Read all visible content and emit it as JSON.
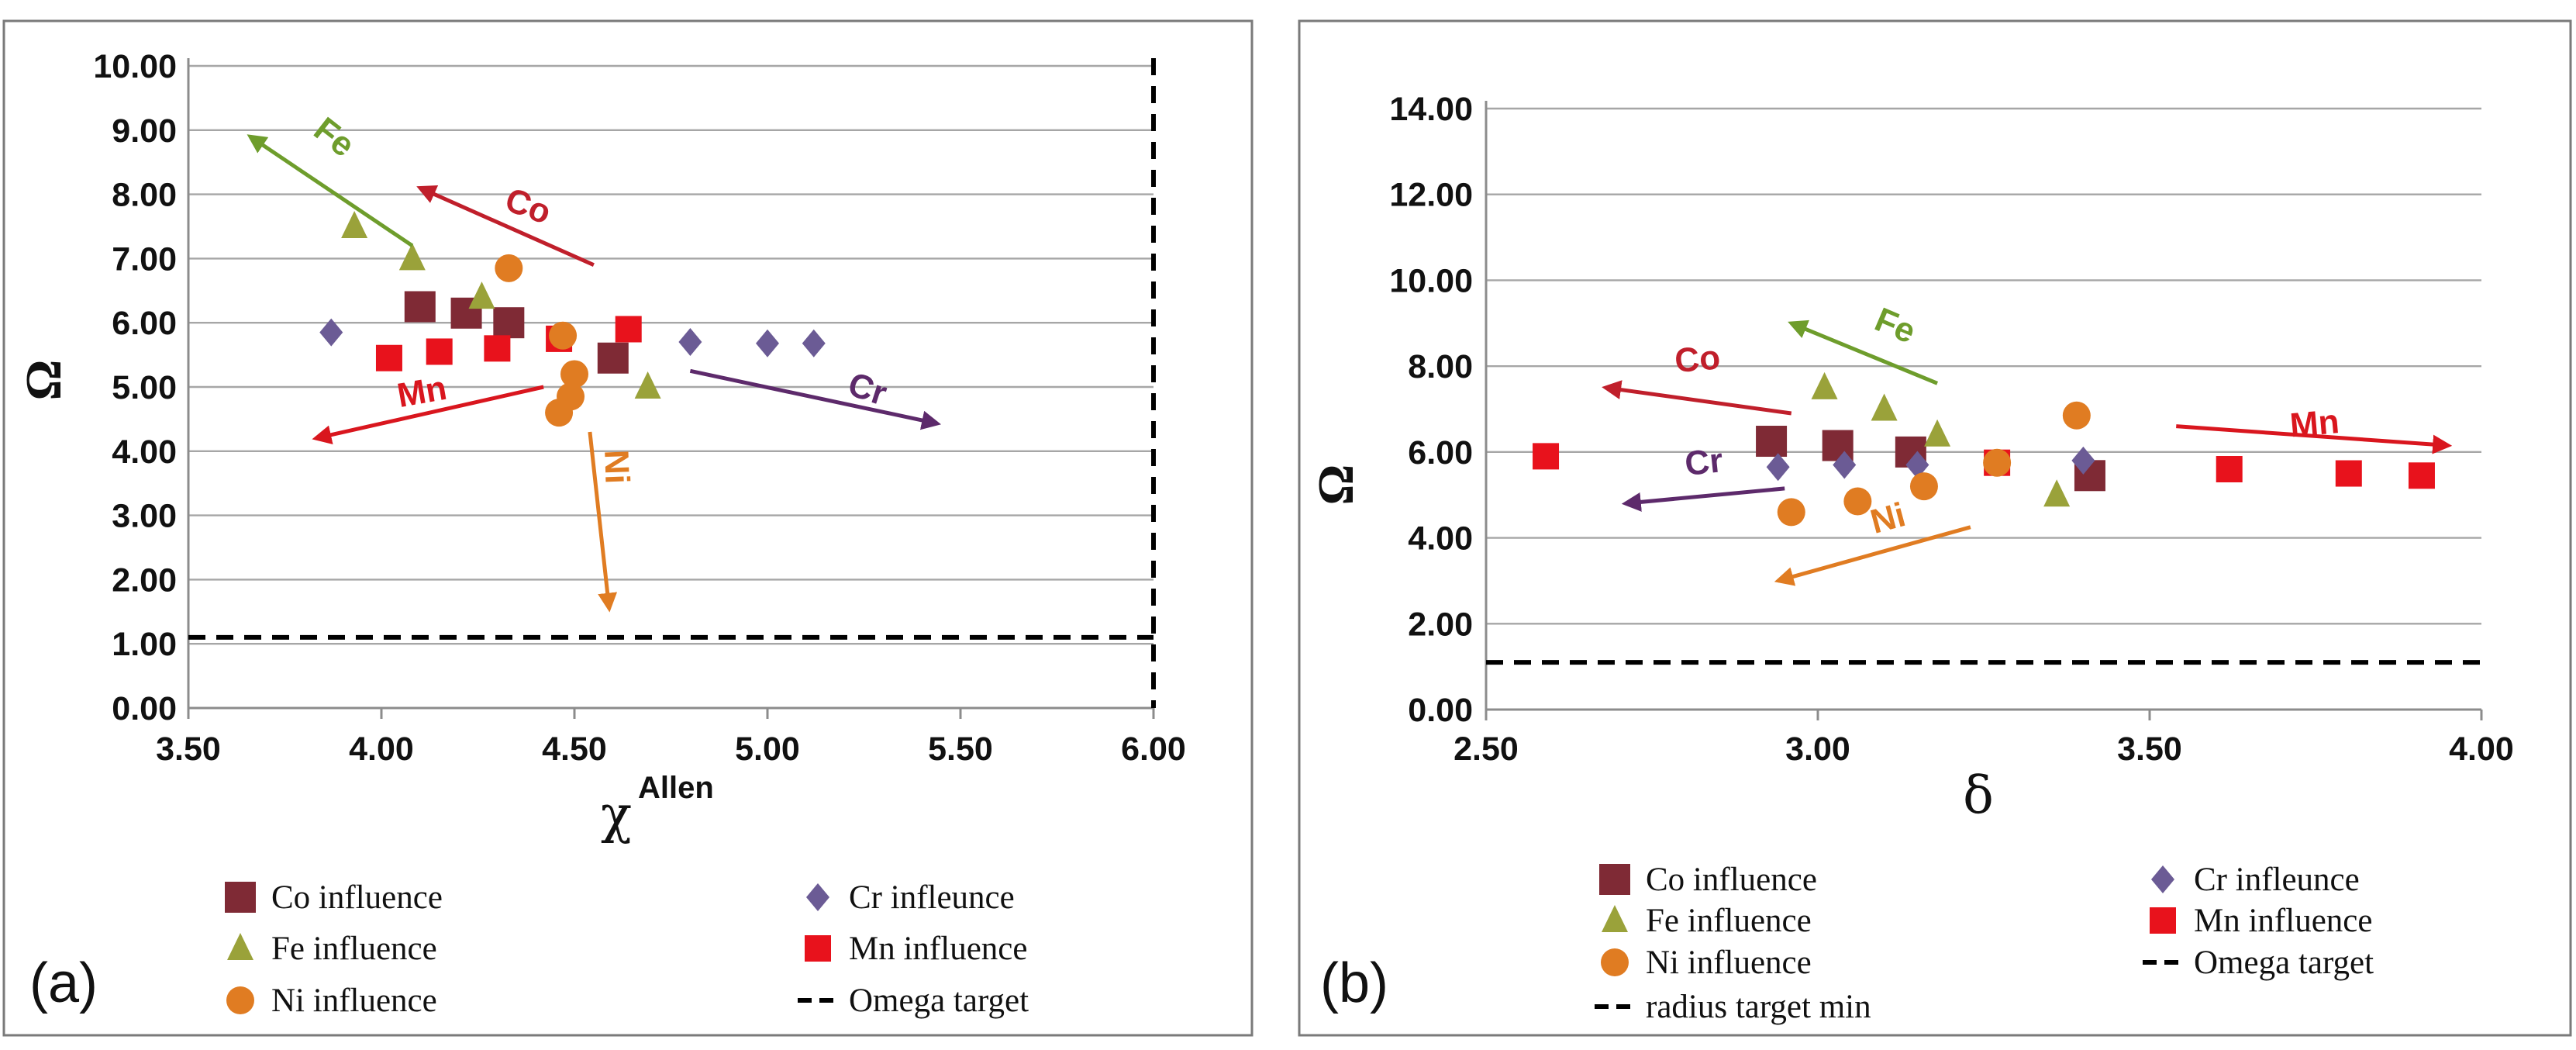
{
  "colors": {
    "co": "#7f2a35",
    "cr": "#6b5b95",
    "fe": "#9aa23a",
    "mn": "#e8121c",
    "ni": "#e07c22",
    "target": "#000000",
    "arrow_fe": "#6e9d2c",
    "arrow_co": "#c01f2b",
    "arrow_mn": "#d9161e",
    "arrow_cr": "#5d2a6b",
    "arrow_ni": "#e07c22"
  },
  "chart_data": [
    {
      "id": "a",
      "type": "scatter",
      "panel_label": "(a)",
      "title": "",
      "xlabel": "χ",
      "xlabel_sup": "Allen",
      "ylabel": "Ω",
      "xlim": [
        3.5,
        6.0
      ],
      "ylim": [
        0,
        10
      ],
      "xticks": [
        "3.50",
        "4.00",
        "4.50",
        "5.00",
        "5.50",
        "6.00"
      ],
      "yticks": [
        "0.00",
        "1.00",
        "2.00",
        "3.00",
        "4.00",
        "5.00",
        "6.00",
        "7.00",
        "8.00",
        "9.00",
        "10.00"
      ],
      "grid": "horizontal",
      "series": [
        {
          "name": "Co influence",
          "key": "co",
          "marker": "square",
          "points": [
            [
              4.1,
              6.25
            ],
            [
              4.22,
              6.15
            ],
            [
              4.33,
              6.0
            ],
            [
              4.6,
              5.45
            ]
          ]
        },
        {
          "name": "Cr infleunce",
          "key": "cr",
          "marker": "diamond",
          "points": [
            [
              3.87,
              5.85
            ],
            [
              4.8,
              5.7
            ],
            [
              5.0,
              5.68
            ],
            [
              5.12,
              5.68
            ]
          ]
        },
        {
          "name": "Fe influence",
          "key": "fe",
          "marker": "triangle",
          "points": [
            [
              3.93,
              7.5
            ],
            [
              4.08,
              7.0
            ],
            [
              4.26,
              6.4
            ],
            [
              4.69,
              5.0
            ]
          ]
        },
        {
          "name": "Mn influence",
          "key": "mn",
          "marker": "square-small",
          "points": [
            [
              4.02,
              5.45
            ],
            [
              4.15,
              5.55
            ],
            [
              4.3,
              5.6
            ],
            [
              4.46,
              5.75
            ],
            [
              4.64,
              5.9
            ]
          ]
        },
        {
          "name": "Ni influence",
          "key": "ni",
          "marker": "circle",
          "points": [
            [
              4.33,
              6.85
            ],
            [
              4.47,
              5.8
            ],
            [
              4.5,
              5.2
            ],
            [
              4.49,
              4.85
            ],
            [
              4.46,
              4.6
            ]
          ]
        },
        {
          "name": "Omega target",
          "key": "target",
          "marker": "dash",
          "y": 1.1
        }
      ],
      "vertical_line_x": 6.0,
      "annotations": [
        {
          "text": "Fe",
          "color_key": "arrow_fe",
          "from": [
            4.08,
            7.2
          ],
          "to": [
            3.66,
            8.9
          ],
          "label_at": [
            3.86,
            8.75
          ],
          "rotate": 38
        },
        {
          "text": "Co",
          "color_key": "arrow_co",
          "from": [
            4.55,
            6.9
          ],
          "to": [
            4.1,
            8.1
          ],
          "label_at": [
            4.37,
            7.65
          ],
          "rotate": 20
        },
        {
          "text": "Mn",
          "color_key": "arrow_mn",
          "from": [
            4.42,
            5.0
          ],
          "to": [
            3.83,
            4.2
          ],
          "label_at": [
            4.11,
            4.75
          ],
          "rotate": -10
        },
        {
          "text": "Cr",
          "color_key": "arrow_cr",
          "from": [
            4.8,
            5.25
          ],
          "to": [
            5.44,
            4.43
          ],
          "label_at": [
            5.25,
            4.8
          ],
          "rotate": 18
        },
        {
          "text": "Ni",
          "color_key": "arrow_ni",
          "from": [
            4.54,
            4.3
          ],
          "to": [
            4.59,
            1.55
          ],
          "label_at": [
            4.58,
            3.75
          ],
          "rotate": 88
        }
      ]
    },
    {
      "id": "b",
      "type": "scatter",
      "panel_label": "(b)",
      "title": "",
      "xlabel": "δ",
      "ylabel": "Ω",
      "xlim": [
        2.5,
        4.0
      ],
      "ylim": [
        0,
        14
      ],
      "xticks": [
        "2.50",
        "3.00",
        "3.50",
        "4.00"
      ],
      "yticks": [
        "0.00",
        "2.00",
        "4.00",
        "6.00",
        "8.00",
        "10.00",
        "12.00",
        "14.00"
      ],
      "grid": "horizontal",
      "series": [
        {
          "name": "Co influence",
          "key": "co",
          "marker": "square",
          "points": [
            [
              2.93,
              6.25
            ],
            [
              3.03,
              6.15
            ],
            [
              3.14,
              6.0
            ],
            [
              3.41,
              5.45
            ]
          ]
        },
        {
          "name": "Cr infleunce",
          "key": "cr",
          "marker": "diamond",
          "points": [
            [
              2.94,
              5.65
            ],
            [
              3.04,
              5.7
            ],
            [
              3.15,
              5.7
            ],
            [
              3.4,
              5.8
            ]
          ]
        },
        {
          "name": "Fe influence",
          "key": "fe",
          "marker": "triangle",
          "points": [
            [
              3.01,
              7.5
            ],
            [
              3.1,
              7.0
            ],
            [
              3.18,
              6.4
            ],
            [
              3.36,
              5.0
            ]
          ]
        },
        {
          "name": "Mn influence",
          "key": "mn",
          "marker": "square-small",
          "points": [
            [
              2.59,
              5.9
            ],
            [
              3.27,
              5.75
            ],
            [
              3.62,
              5.6
            ],
            [
              3.8,
              5.5
            ],
            [
              3.91,
              5.45
            ]
          ]
        },
        {
          "name": "Ni influence",
          "key": "ni",
          "marker": "circle",
          "points": [
            [
              2.96,
              4.6
            ],
            [
              3.06,
              4.85
            ],
            [
              3.16,
              5.2
            ],
            [
              3.27,
              5.75
            ],
            [
              3.39,
              6.85
            ]
          ]
        },
        {
          "name": "Omega target",
          "key": "target",
          "marker": "dash",
          "y": 1.1
        },
        {
          "name": "radius target min",
          "key": "target",
          "marker": "dash"
        }
      ],
      "annotations": [
        {
          "text": "Co",
          "color_key": "arrow_co",
          "from": [
            2.96,
            6.9
          ],
          "to": [
            2.68,
            7.5
          ],
          "label_at": [
            2.82,
            7.9
          ],
          "rotate": -5
        },
        {
          "text": "Fe",
          "color_key": "arrow_fe",
          "from": [
            3.18,
            7.6
          ],
          "to": [
            2.96,
            9.0
          ],
          "label_at": [
            3.11,
            8.7
          ],
          "rotate": 23
        },
        {
          "text": "Mn",
          "color_key": "arrow_mn",
          "from": [
            3.54,
            6.6
          ],
          "to": [
            3.95,
            6.15
          ],
          "label_at": [
            3.75,
            6.4
          ],
          "rotate": -5
        },
        {
          "text": "Cr",
          "color_key": "arrow_cr",
          "from": [
            2.95,
            5.15
          ],
          "to": [
            2.71,
            4.8
          ],
          "label_at": [
            2.83,
            5.5
          ],
          "rotate": -6
        },
        {
          "text": "Ni",
          "color_key": "arrow_ni",
          "from": [
            3.23,
            4.25
          ],
          "to": [
            2.94,
            3.0
          ],
          "label_at": [
            3.11,
            4.2
          ],
          "rotate": -15
        }
      ]
    }
  ]
}
